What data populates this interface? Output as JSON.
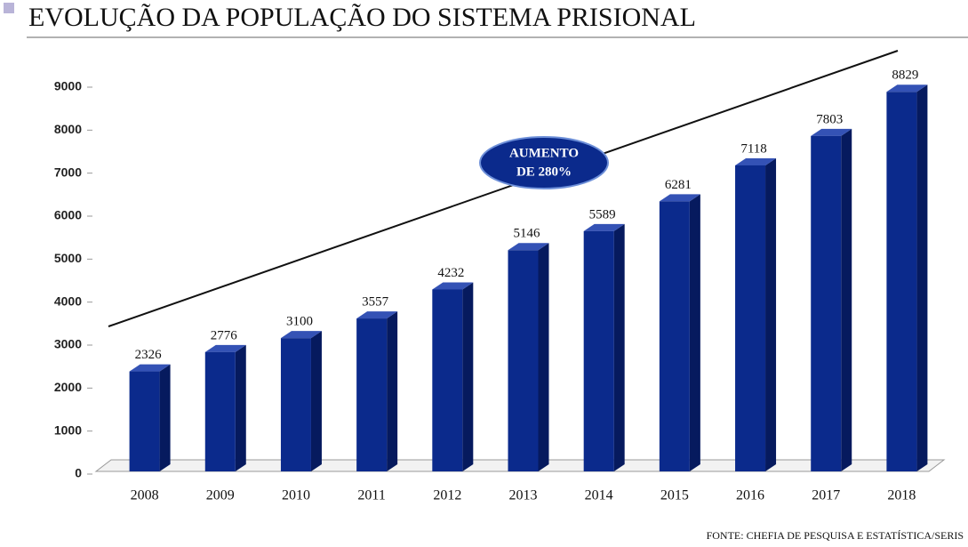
{
  "chart_data": {
    "type": "bar3d",
    "title": "EVOLUÇÃO DA POPULAÇÃO DO SISTEMA PRISIONAL",
    "categories": [
      "2008",
      "2009",
      "2010",
      "2011",
      "2012",
      "2013",
      "2014",
      "2015",
      "2016",
      "2017",
      "2018"
    ],
    "values": [
      2326,
      2776,
      3100,
      3557,
      4232,
      5146,
      5589,
      6281,
      7118,
      7803,
      8829
    ],
    "color": "#0b2a8c",
    "ylim": [
      0,
      9000
    ],
    "yticks": [
      0,
      1000,
      2000,
      3000,
      4000,
      5000,
      6000,
      7000,
      8000,
      9000
    ],
    "annotation": [
      "AUMENTO",
      "DE 280%"
    ],
    "source": "FONTE: CHEFIA DE PESQUISA E ESTATÍSTICA/SERIS"
  }
}
